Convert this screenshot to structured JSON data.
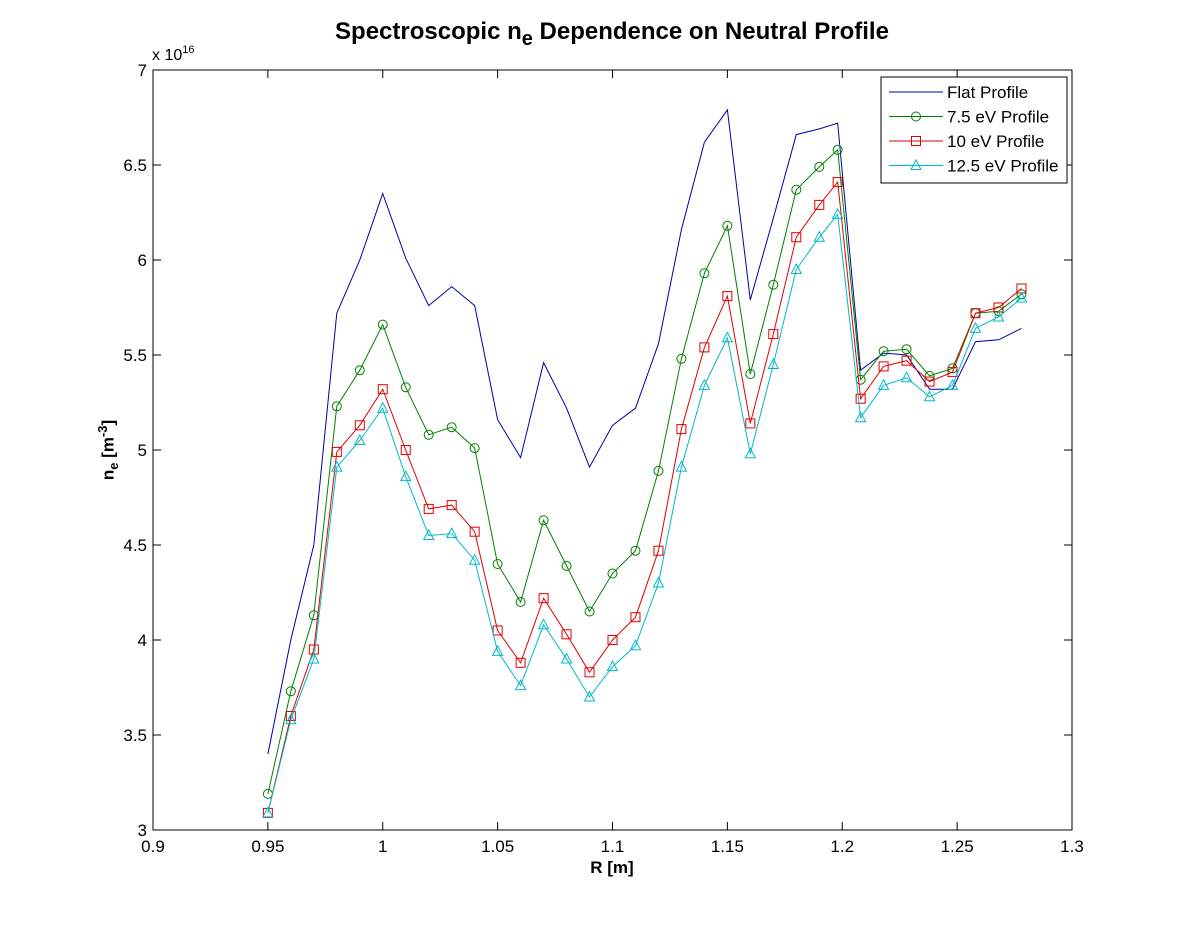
{
  "chart_data": {
    "type": "line",
    "title_main": "Spectroscopic n",
    "title_sub": "e",
    "title_rest": " Dependence on Neutral Profile",
    "xlabel": "R [m]",
    "ylabel_main": "n",
    "ylabel_sub": "e",
    "ylabel_rest": " [m",
    "ylabel_sup": "-3",
    "ylabel_close": "]",
    "y_multiplier_base": "x 10",
    "y_multiplier_exp": "16",
    "xlim": [
      0.9,
      1.3
    ],
    "ylim": [
      3,
      7
    ],
    "xticks": [
      "0.9",
      "0.95",
      "1",
      "1.05",
      "1.1",
      "1.15",
      "1.2",
      "1.25",
      "1.3"
    ],
    "yticks": [
      "3",
      "3.5",
      "4",
      "4.5",
      "5",
      "5.5",
      "6",
      "6.5",
      "7"
    ],
    "grid": false,
    "legend_position": "top-right",
    "x": [
      0.95,
      0.96,
      0.97,
      0.98,
      0.99,
      1.0,
      1.01,
      1.02,
      1.03,
      1.04,
      1.05,
      1.06,
      1.07,
      1.08,
      1.09,
      1.1,
      1.11,
      1.12,
      1.13,
      1.14,
      1.15,
      1.16,
      1.17,
      1.18,
      1.19,
      1.198,
      1.208,
      1.218,
      1.228,
      1.238,
      1.248,
      1.258,
      1.268,
      1.278
    ],
    "series": [
      {
        "name": "Flat Profile",
        "color": "#0000a8",
        "marker": "none",
        "values": [
          3.4,
          4.0,
          4.5,
          5.72,
          6.0,
          6.35,
          6.01,
          5.76,
          5.86,
          5.76,
          5.16,
          4.96,
          5.46,
          5.22,
          4.91,
          5.13,
          5.22,
          5.56,
          6.16,
          6.62,
          6.79,
          5.79,
          6.22,
          6.66,
          6.69,
          6.72,
          5.42,
          5.51,
          5.5,
          5.32,
          5.32,
          5.57,
          5.58,
          5.64
        ]
      },
      {
        "name": "7.5 eV Profile",
        "color": "#008000",
        "marker": "circle",
        "values": [
          3.19,
          3.73,
          4.13,
          5.23,
          5.42,
          5.66,
          5.33,
          5.08,
          5.12,
          5.01,
          4.4,
          4.2,
          4.63,
          4.39,
          4.15,
          4.35,
          4.47,
          4.89,
          5.48,
          5.93,
          6.18,
          5.4,
          5.87,
          6.37,
          6.49,
          6.58,
          5.37,
          5.52,
          5.53,
          5.39,
          5.43,
          5.72,
          5.73,
          5.82
        ]
      },
      {
        "name": "10 eV Profile",
        "color": "#e00000",
        "marker": "square",
        "values": [
          3.09,
          3.6,
          3.95,
          4.99,
          5.13,
          5.32,
          5.0,
          4.69,
          4.71,
          4.57,
          4.05,
          3.88,
          4.22,
          4.03,
          3.83,
          4.0,
          4.12,
          4.47,
          5.11,
          5.54,
          5.81,
          5.14,
          5.61,
          6.12,
          6.29,
          6.41,
          5.27,
          5.44,
          5.47,
          5.36,
          5.41,
          5.72,
          5.75,
          5.85
        ]
      },
      {
        "name": "12.5 eV Profile",
        "color": "#00b8c8",
        "marker": "triangle",
        "values": [
          3.09,
          3.58,
          3.9,
          4.91,
          5.05,
          5.22,
          4.86,
          4.55,
          4.56,
          4.42,
          3.94,
          3.76,
          4.08,
          3.9,
          3.7,
          3.86,
          3.97,
          4.3,
          4.91,
          5.34,
          5.59,
          4.98,
          5.45,
          5.95,
          6.12,
          6.24,
          5.17,
          5.34,
          5.38,
          5.28,
          5.34,
          5.64,
          5.7,
          5.8
        ]
      }
    ]
  }
}
